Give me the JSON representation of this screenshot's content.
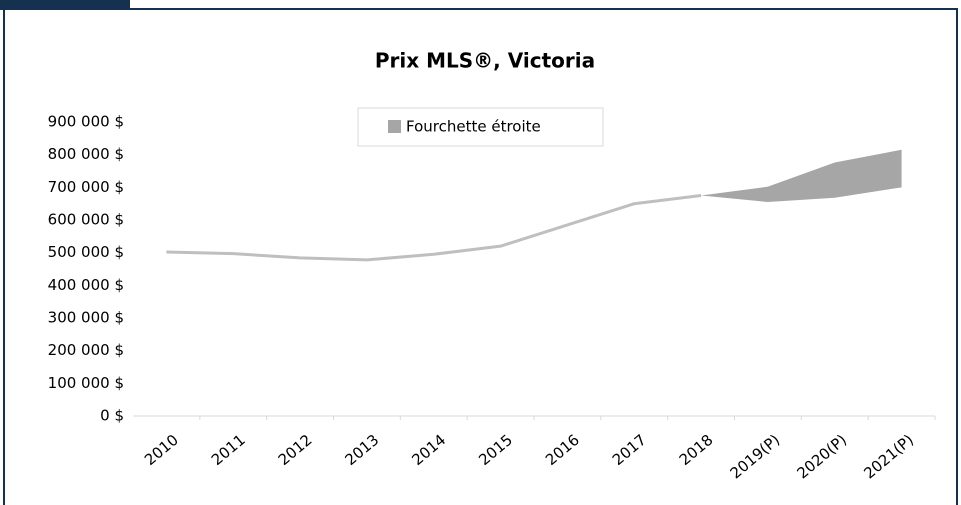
{
  "chart_data": {
    "type": "line",
    "title": "Prix MLS®, Victoria",
    "categories": [
      "2010",
      "2011",
      "2012",
      "2013",
      "2014",
      "2015",
      "2016",
      "2017",
      "2018",
      "2019(P)",
      "2020(P)",
      "2021(P)"
    ],
    "series": [
      {
        "color": "#bfbfbf",
        "values": [
          502000,
          497000,
          484000,
          478000,
          495000,
          520000,
          585000,
          650000,
          675000,
          null,
          null,
          null
        ]
      }
    ],
    "band": {
      "name": "Fourchette étroite",
      "color": "#a6a6a6",
      "low": [
        null,
        null,
        null,
        null,
        null,
        null,
        null,
        null,
        675000,
        655000,
        668000,
        700000
      ],
      "high": [
        null,
        null,
        null,
        null,
        null,
        null,
        null,
        null,
        675000,
        702000,
        776000,
        815000
      ]
    },
    "ylim": [
      0,
      900000
    ],
    "yticks": [
      {
        "value": 0,
        "label": "0 $"
      },
      {
        "value": 100000,
        "label": "100 000 $"
      },
      {
        "value": 200000,
        "label": "200 000 $"
      },
      {
        "value": 300000,
        "label": "300 000 $"
      },
      {
        "value": 400000,
        "label": "400 000 $"
      },
      {
        "value": 500000,
        "label": "500 000 $"
      },
      {
        "value": 600000,
        "label": "600 000 $"
      },
      {
        "value": 700000,
        "label": "700 000 $"
      },
      {
        "value": 800000,
        "label": "800 000 $"
      },
      {
        "value": 900000,
        "label": "900 000 $"
      }
    ],
    "grid": false
  }
}
